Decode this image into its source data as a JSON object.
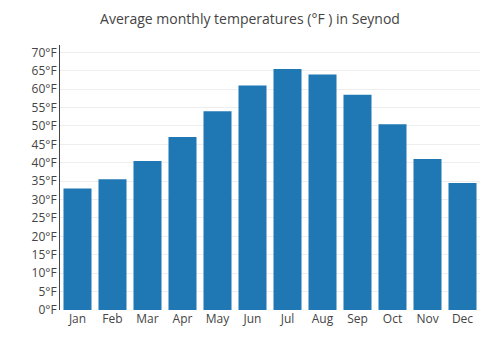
{
  "chart_data": {
    "type": "bar",
    "title": "Average monthly temperatures (°F ) in Seynod",
    "categories": [
      "Jan",
      "Feb",
      "Mar",
      "Apr",
      "May",
      "Jun",
      "Jul",
      "Aug",
      "Sep",
      "Oct",
      "Nov",
      "Dec"
    ],
    "values": [
      33,
      35.5,
      40.5,
      47,
      54,
      61,
      65.5,
      64,
      58.5,
      50.5,
      41,
      34.5
    ],
    "ylim": [
      0,
      72
    ],
    "yticks": [
      {
        "value": 0,
        "label": "0°F"
      },
      {
        "value": 5,
        "label": "5°F"
      },
      {
        "value": 10,
        "label": "10°F"
      },
      {
        "value": 15,
        "label": "15°F"
      },
      {
        "value": 20,
        "label": "20°F"
      },
      {
        "value": 25,
        "label": "25°F"
      },
      {
        "value": 30,
        "label": "30°F"
      },
      {
        "value": 35,
        "label": "35°F"
      },
      {
        "value": 40,
        "label": "40°F"
      },
      {
        "value": 45,
        "label": "45°F"
      },
      {
        "value": 50,
        "label": "50°F"
      },
      {
        "value": 55,
        "label": "55°F"
      },
      {
        "value": 60,
        "label": "60°F"
      },
      {
        "value": 65,
        "label": "65°F"
      },
      {
        "value": 70,
        "label": "70°F"
      }
    ],
    "grid": true
  }
}
